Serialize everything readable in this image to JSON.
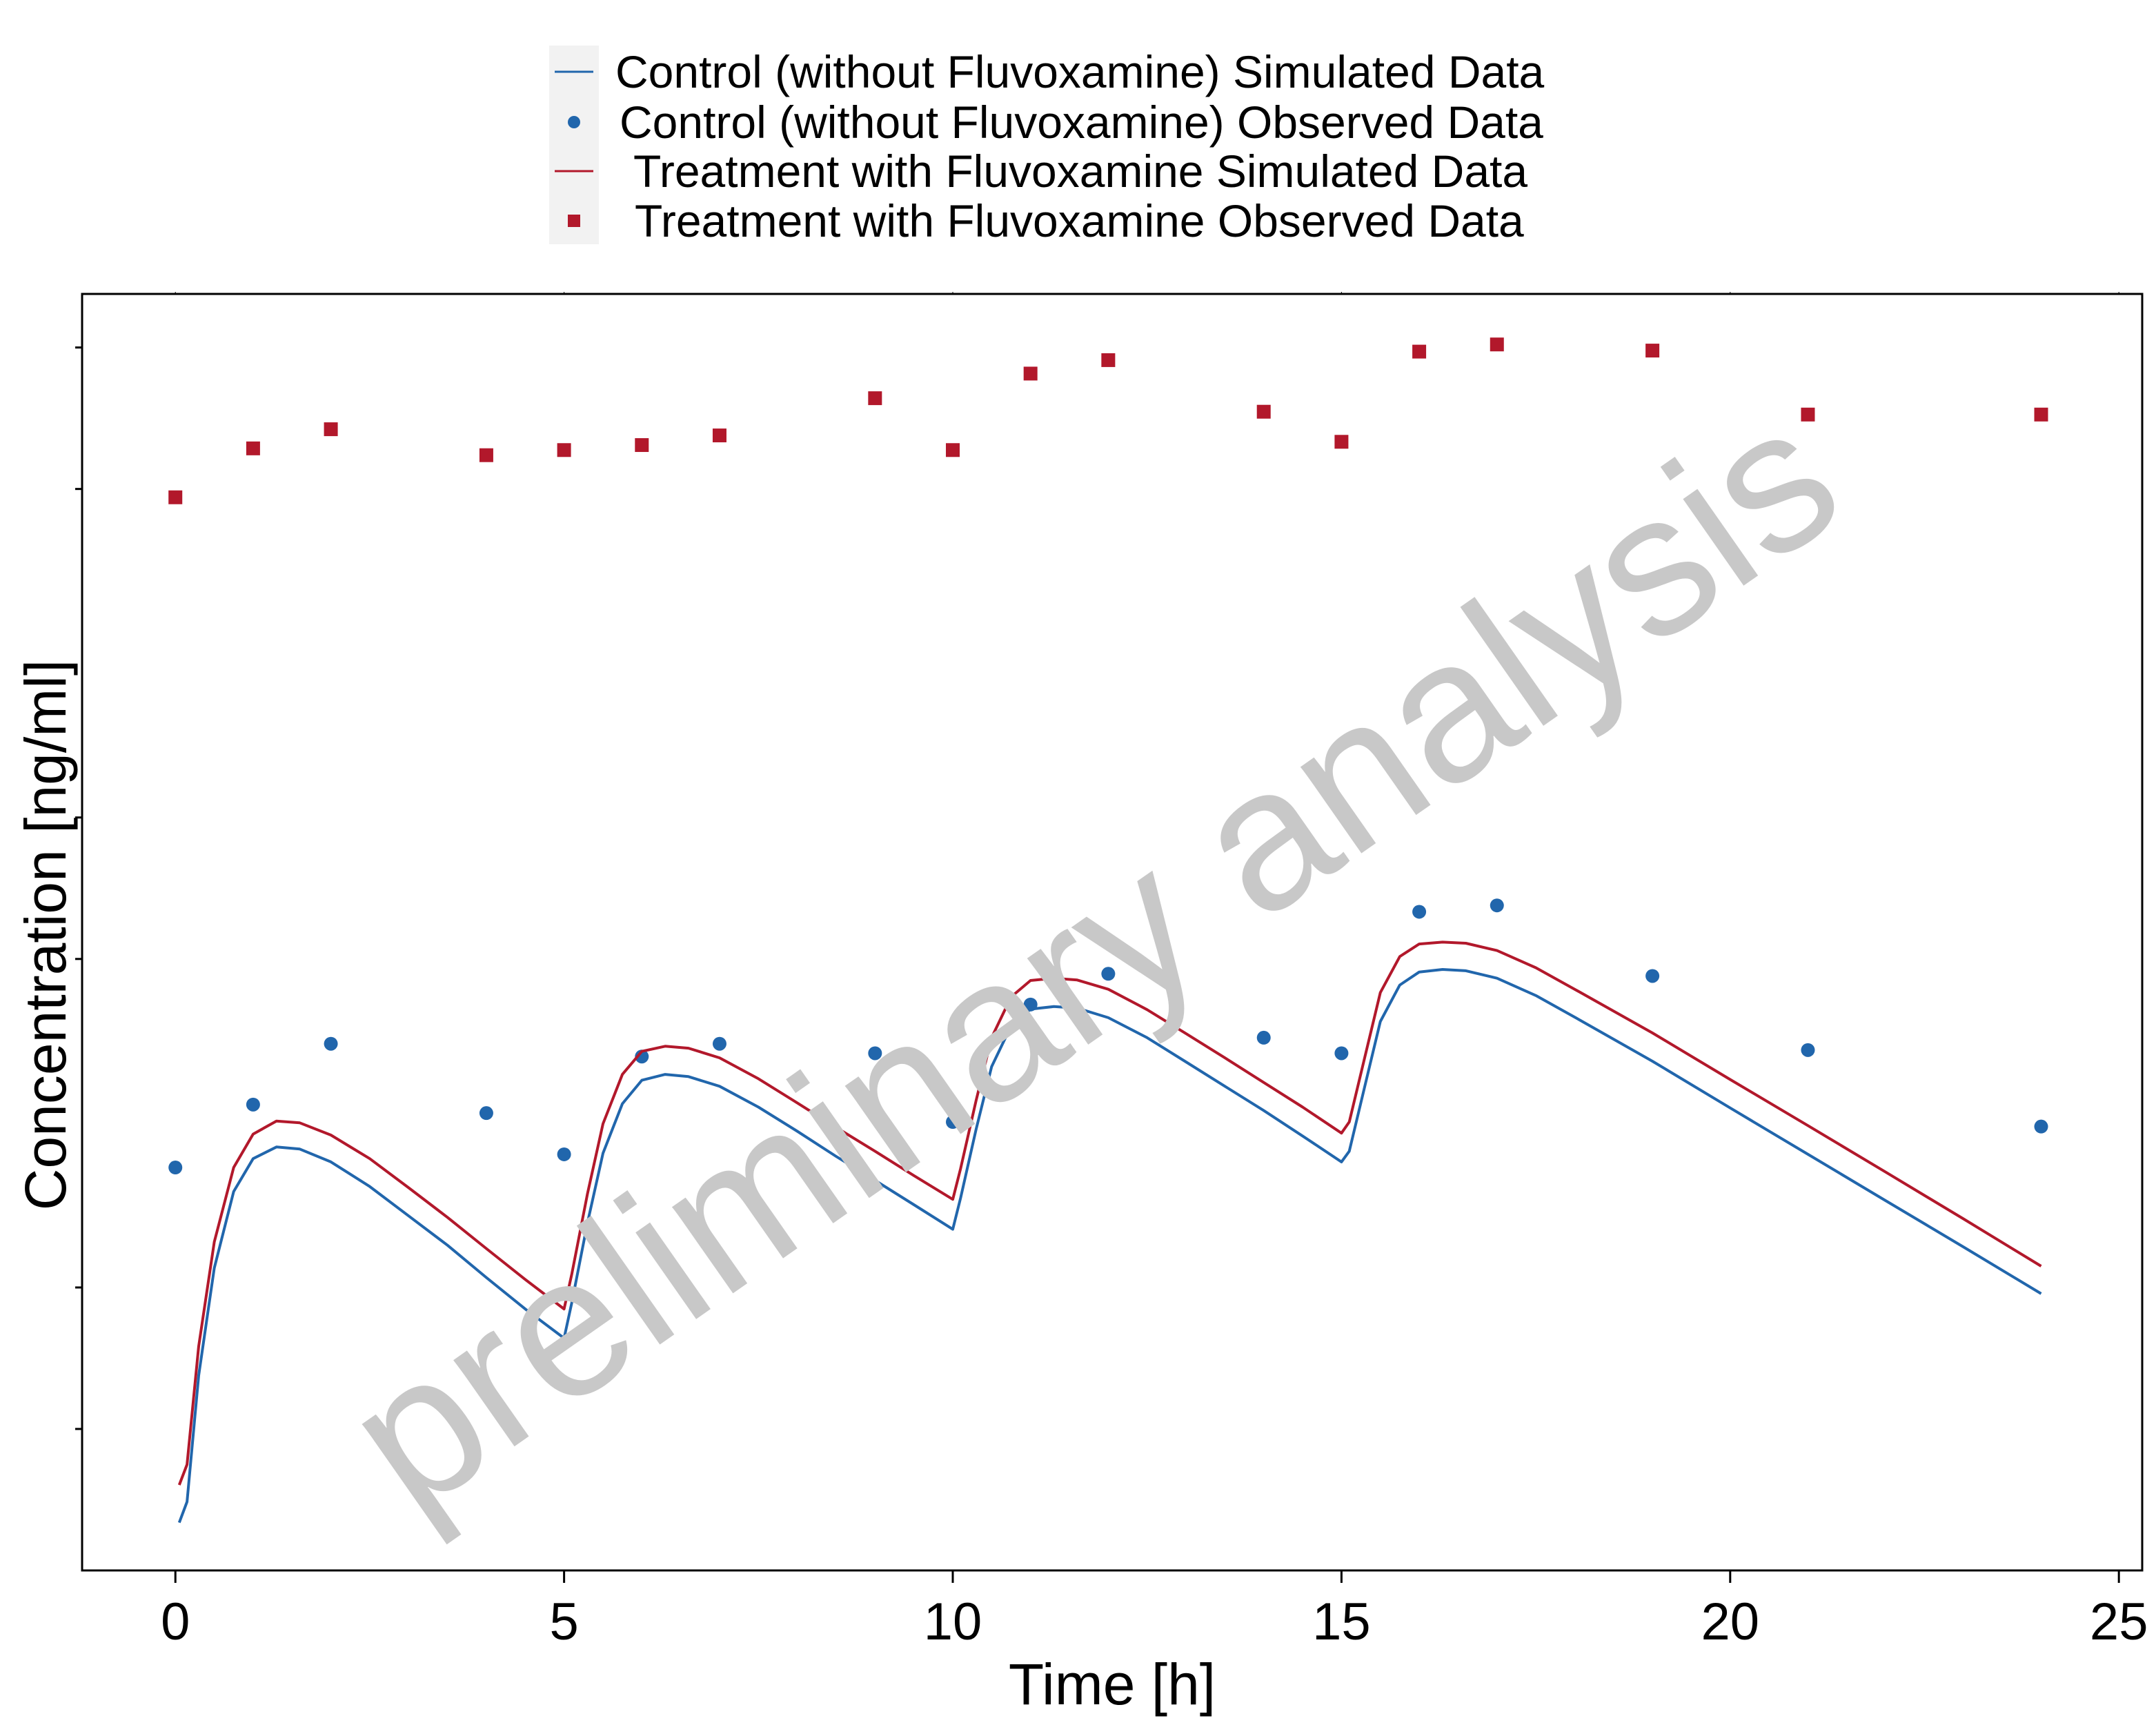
{
  "chart_data": {
    "type": "line",
    "title": "",
    "xlabel": "Time [h]",
    "ylabel": "Concentration [ng/ml]",
    "xlim": [
      -1.2,
      25.3
    ],
    "x_ticks": [
      0,
      5,
      10,
      15,
      20,
      25
    ],
    "y_scale": "log",
    "y_tick_labels_shown": false,
    "grid": false,
    "legend_position": "top",
    "watermark": "preliminary analysis",
    "series": [
      {
        "name": "Control (without Fluvoxamine) Simulated Data",
        "kind": "line",
        "color": "#2166ac",
        "x": [
          0.05,
          0.15,
          0.3,
          0.5,
          0.75,
          1.0,
          1.3,
          1.6,
          2.0,
          2.5,
          3.0,
          3.5,
          4.0,
          4.5,
          5.0,
          5.1,
          5.3,
          5.5,
          5.75,
          6.0,
          6.3,
          6.6,
          7.0,
          7.5,
          8.0,
          8.5,
          9.0,
          9.5,
          10.0,
          10.1,
          10.3,
          10.5,
          10.75,
          11.0,
          11.3,
          11.6,
          12.0,
          12.5,
          13.0,
          13.5,
          14.0,
          14.5,
          15.0,
          15.1,
          15.3,
          15.5,
          15.75,
          16.0,
          16.3,
          16.6,
          17.0,
          17.5,
          18.0,
          19.0,
          20.0,
          21.0,
          22.0,
          23.0,
          24.0
        ],
        "y": [
          3.16,
          3.5,
          6.5,
          11.0,
          16.0,
          18.8,
          19.9,
          19.7,
          18.5,
          16.4,
          14.2,
          12.3,
          10.5,
          9.0,
          7.8,
          9.3,
          13.7,
          19.3,
          24.6,
          27.6,
          28.4,
          28.1,
          26.8,
          24.2,
          21.5,
          19.0,
          16.9,
          15.0,
          13.3,
          15.5,
          21.7,
          29.5,
          36.0,
          39.1,
          39.6,
          39.3,
          37.5,
          34.0,
          30.2,
          26.8,
          23.8,
          21.0,
          18.5,
          19.5,
          26.8,
          36.8,
          44.0,
          46.9,
          47.5,
          47.2,
          45.5,
          41.8,
          37.6,
          30.3,
          24.1,
          19.2,
          15.3,
          12.2,
          9.7
        ]
      },
      {
        "name": "Control (without Fluvoxamine) Observed Data",
        "kind": "points",
        "color": "#2166ac",
        "x": [
          0,
          1,
          2,
          4,
          5,
          6,
          7,
          9,
          10,
          11,
          12,
          14,
          15,
          16,
          17,
          19,
          21,
          24
        ],
        "y": [
          18.0,
          24.5,
          33.0,
          23.5,
          19.2,
          31.0,
          33.0,
          31.5,
          22.5,
          40.0,
          46.5,
          34.0,
          31.5,
          63.0,
          65.0,
          46.0,
          32.0,
          22.0
        ]
      },
      {
        "name": "Treatment with Fluvoxamine Simulated Data",
        "kind": "line",
        "color": "#b2182b",
        "x": [
          0.05,
          0.15,
          0.3,
          0.5,
          0.75,
          1.0,
          1.3,
          1.6,
          2.0,
          2.5,
          3.0,
          3.5,
          4.0,
          4.5,
          5.0,
          5.1,
          5.3,
          5.5,
          5.75,
          6.0,
          6.3,
          6.6,
          7.0,
          7.5,
          8.0,
          8.5,
          9.0,
          9.5,
          10.0,
          10.1,
          10.3,
          10.5,
          10.75,
          11.0,
          11.3,
          11.6,
          12.0,
          12.5,
          13.0,
          13.5,
          14.0,
          14.5,
          15.0,
          15.1,
          15.3,
          15.5,
          15.75,
          16.0,
          16.3,
          16.6,
          17.0,
          17.5,
          18.0,
          19.0,
          20.0,
          21.0,
          22.0,
          23.0,
          24.0
        ],
        "y": [
          3.8,
          4.2,
          7.5,
          12.5,
          18.0,
          21.2,
          22.6,
          22.4,
          21.1,
          18.8,
          16.3,
          14.1,
          12.1,
          10.4,
          9.0,
          10.7,
          15.8,
          22.3,
          28.4,
          31.8,
          32.6,
          32.3,
          30.8,
          27.8,
          24.7,
          21.9,
          19.5,
          17.3,
          15.4,
          17.9,
          25.0,
          34.0,
          41.5,
          45.0,
          45.5,
          45.1,
          43.1,
          39.0,
          34.7,
          30.8,
          27.3,
          24.2,
          21.3,
          22.5,
          30.9,
          42.4,
          50.6,
          53.8,
          54.3,
          54.0,
          52.1,
          47.9,
          43.1,
          34.8,
          27.7,
          22.1,
          17.6,
          14.0,
          11.1
        ]
      },
      {
        "name": "Treatment with Fluvoxamine Observed Data",
        "kind": "points",
        "color": "#b2182b",
        "x": [
          0,
          1,
          2,
          4,
          5,
          6,
          7,
          9,
          10,
          11,
          12,
          14,
          15,
          16,
          17,
          19,
          21,
          24
        ],
        "y": [
          480,
          610,
          670,
          590,
          605,
          620,
          650,
          780,
          605,
          880,
          940,
          730,
          630,
          980,
          1015,
          985,
          720,
          720
        ]
      }
    ]
  }
}
